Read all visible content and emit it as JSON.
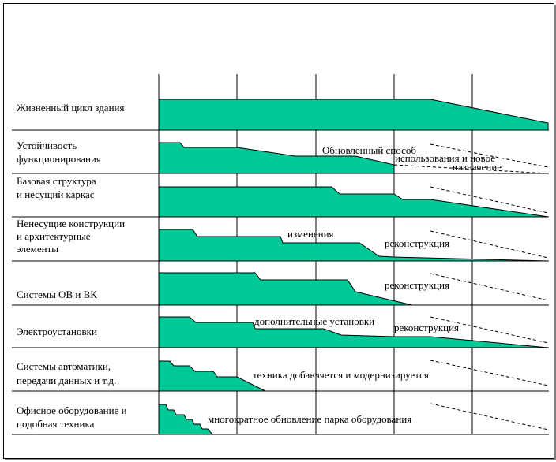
{
  "rows": [
    {
      "label": [
        "Жизненный цикл здания"
      ]
    },
    {
      "label": [
        "Устойчивость",
        "функционирования"
      ]
    },
    {
      "label": [
        "Базовая структура",
        "и несущий каркас"
      ]
    },
    {
      "label": [
        "Ненесущие конструкции",
        "и архитектурные",
        "элементы"
      ]
    },
    {
      "label": [
        "Системы ОВ и ВК"
      ]
    },
    {
      "label": [
        "Электроустановки"
      ]
    },
    {
      "label": [
        "Системы автоматики,",
        "передачи данных и т.д."
      ]
    },
    {
      "label": [
        "Офисное оборудование и",
        "подобная техника"
      ]
    }
  ],
  "annotations": [
    "Обновленный способ",
    "использования и новое",
    "назначение",
    "изменения",
    "реконструкция",
    "реконструкция",
    "дополнительные установки",
    "реконструкция",
    "техника добавляется и модернизируется",
    "многократное обновление парка оборудования"
  ],
  "colors": {
    "fill": "#00c896",
    "stroke": "#000000",
    "grid": "#000000"
  }
}
